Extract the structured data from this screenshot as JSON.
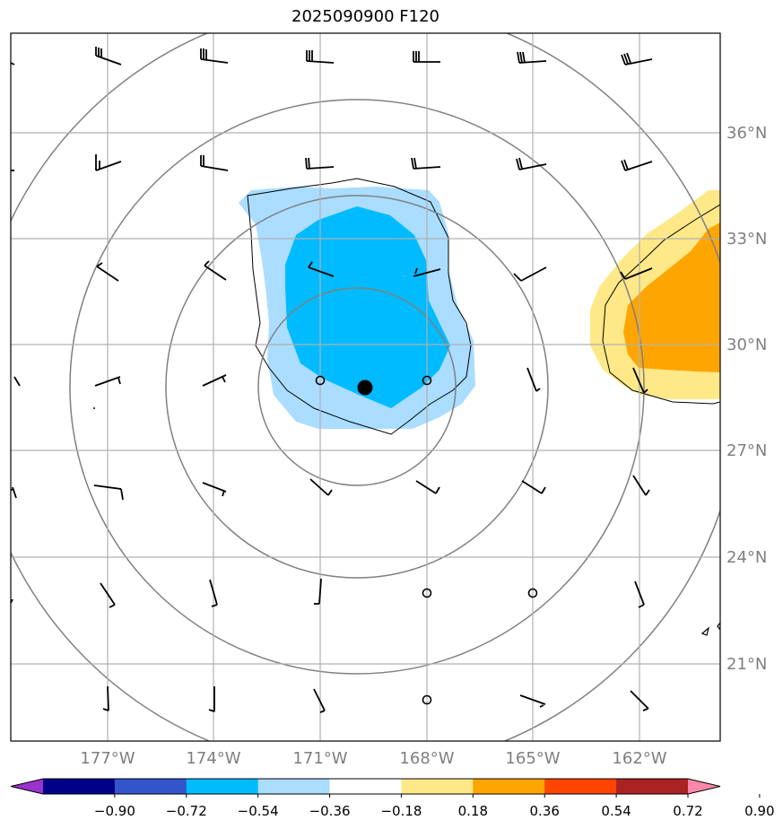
{
  "title": "2025090900 F120",
  "map": {
    "lon_labels": [
      "177°W",
      "174°W",
      "171°W",
      "168°W",
      "165°W",
      "162°W"
    ],
    "lat_labels": [
      "36°N",
      "33°N",
      "30°N",
      "27°N",
      "24°N",
      "21°N"
    ],
    "storm_center": {
      "lon": -169.7,
      "lat": 28.8
    },
    "grid_color": "#b0b0b0",
    "circle_color": "#808080"
  },
  "colorbar": {
    "ticks": [
      "−0.90",
      "−0.72",
      "−0.54",
      "−0.36",
      "−0.18",
      "0.18",
      "0.36",
      "0.54",
      "0.72",
      "0.90"
    ],
    "colors": [
      "#9933cc",
      "#000088",
      "#3355cc",
      "#00bbff",
      "#aaddff",
      "#ffffff",
      "#ffe888",
      "#ffa500",
      "#ff4400",
      "#aa2222",
      "#ff88aa"
    ]
  },
  "wind_barbs": {
    "calm_marker": "circle"
  }
}
